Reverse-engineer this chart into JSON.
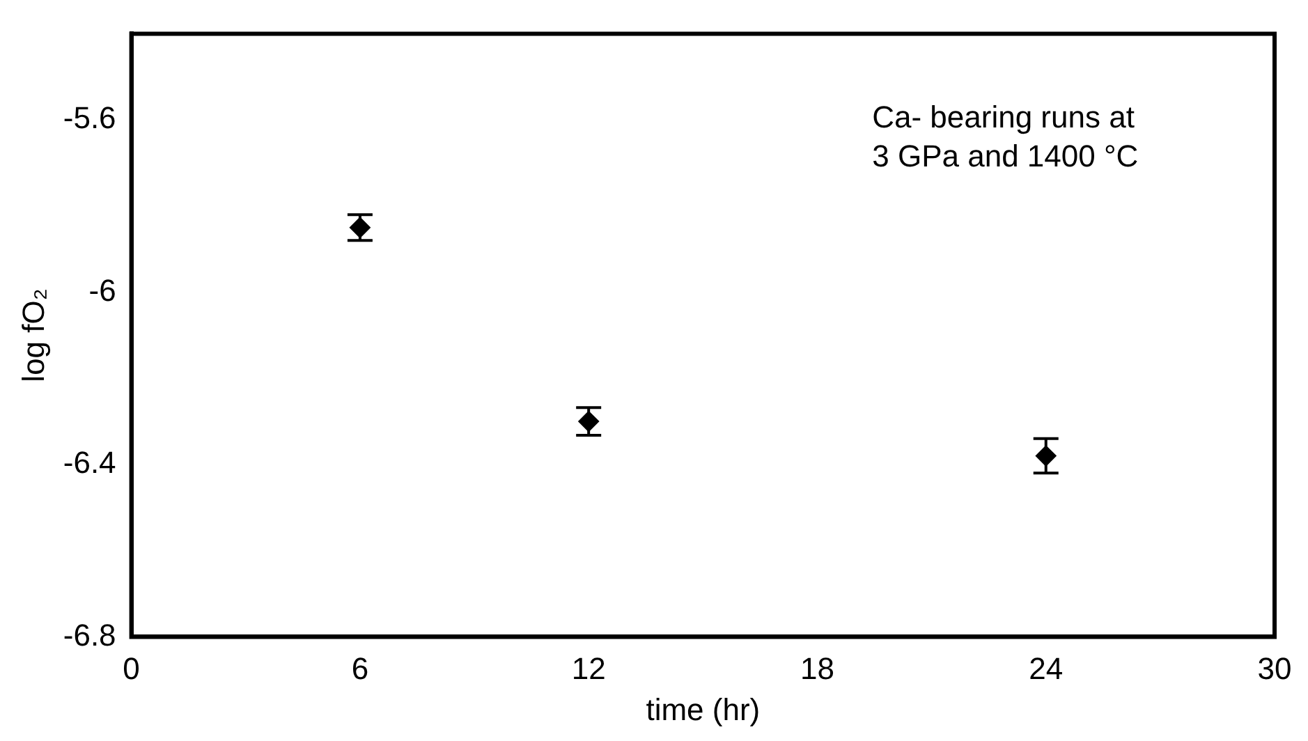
{
  "chart_data": {
    "type": "scatter",
    "xlabel": "time (hr)",
    "ylabel": "log fO₂",
    "annotations": [
      "Ca- bearing runs at\n3 GPa and 1400 °C"
    ],
    "x": [
      6,
      12,
      24
    ],
    "series": [
      {
        "color": "#000000",
        "values": [
          -5.85,
          -6.3,
          -6.38
        ],
        "errors": [
          0.03,
          0.032,
          0.04
        ]
      }
    ],
    "xlim": [
      0,
      30
    ],
    "xticks": [
      0,
      6,
      12,
      18,
      24,
      30
    ],
    "ylim": [
      -6.8,
      -5.4
    ],
    "yticks": [
      -6.8,
      -6.4,
      -6,
      -5.6
    ],
    "marker": "diamond",
    "grid": false,
    "legend": false
  }
}
